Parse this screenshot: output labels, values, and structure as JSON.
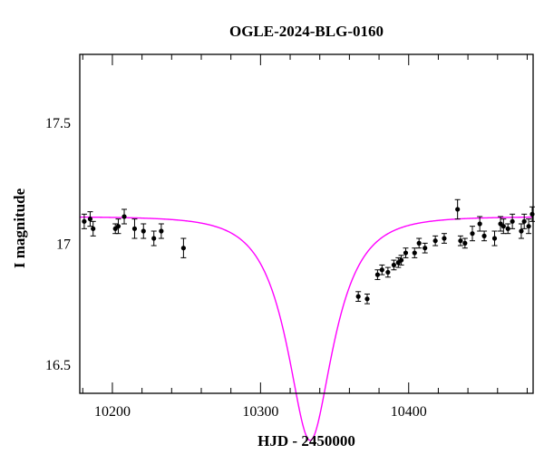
{
  "chart_data": {
    "type": "scatter",
    "title": "OGLE-2024-BLG-0160",
    "xlabel": "HJD - 2450000",
    "ylabel": "I magnitude",
    "xlim": [
      10178,
      10484
    ],
    "ylim": [
      17.78,
      16.38
    ],
    "y_inverted": true,
    "x_ticks": [
      10200,
      10300,
      10400
    ],
    "x_tick_labels": [
      "10200",
      "10300",
      "10400"
    ],
    "y_ticks": [
      16.5,
      17.0,
      17.5
    ],
    "y_tick_labels": [
      "16.5",
      "17",
      "17.5"
    ],
    "x_minor_step": 20,
    "y_minor_step": 0.1,
    "grid": false,
    "colors": {
      "model": "#ff00ff",
      "points": "#000000",
      "frame": "#000000"
    },
    "model": {
      "name": "",
      "t0": 10333.5,
      "tE": 28,
      "u0": 0.46,
      "baseline_mag": 17.11,
      "blend_fraction": 1.0
    },
    "series": [
      {
        "name": "",
        "points": [
          {
            "x": 10181,
            "y": 17.09,
            "err": 0.03
          },
          {
            "x": 10185,
            "y": 17.1,
            "err": 0.03
          },
          {
            "x": 10187,
            "y": 17.06,
            "err": 0.03
          },
          {
            "x": 10202,
            "y": 17.06,
            "err": 0.02
          },
          {
            "x": 10204,
            "y": 17.07,
            "err": 0.03
          },
          {
            "x": 10208,
            "y": 17.11,
            "err": 0.03
          },
          {
            "x": 10215,
            "y": 17.06,
            "err": 0.04
          },
          {
            "x": 10221,
            "y": 17.05,
            "err": 0.03
          },
          {
            "x": 10228,
            "y": 17.02,
            "err": 0.03
          },
          {
            "x": 10233,
            "y": 17.05,
            "err": 0.03
          },
          {
            "x": 10248,
            "y": 16.98,
            "err": 0.04
          },
          {
            "x": 10366,
            "y": 16.78,
            "err": 0.02
          },
          {
            "x": 10372,
            "y": 16.77,
            "err": 0.02
          },
          {
            "x": 10379,
            "y": 16.87,
            "err": 0.02
          },
          {
            "x": 10382,
            "y": 16.89,
            "err": 0.02
          },
          {
            "x": 10386,
            "y": 16.88,
            "err": 0.02
          },
          {
            "x": 10390,
            "y": 16.91,
            "err": 0.02
          },
          {
            "x": 10393,
            "y": 16.92,
            "err": 0.02
          },
          {
            "x": 10395,
            "y": 16.93,
            "err": 0.02
          },
          {
            "x": 10398,
            "y": 16.96,
            "err": 0.02
          },
          {
            "x": 10404,
            "y": 16.96,
            "err": 0.02
          },
          {
            "x": 10407,
            "y": 17.0,
            "err": 0.02
          },
          {
            "x": 10411,
            "y": 16.98,
            "err": 0.02
          },
          {
            "x": 10418,
            "y": 17.01,
            "err": 0.02
          },
          {
            "x": 10424,
            "y": 17.02,
            "err": 0.02
          },
          {
            "x": 10433,
            "y": 17.14,
            "err": 0.04
          },
          {
            "x": 10435,
            "y": 17.01,
            "err": 0.02
          },
          {
            "x": 10438,
            "y": 17.0,
            "err": 0.02
          },
          {
            "x": 10443,
            "y": 17.04,
            "err": 0.03
          },
          {
            "x": 10448,
            "y": 17.08,
            "err": 0.03
          },
          {
            "x": 10451,
            "y": 17.03,
            "err": 0.02
          },
          {
            "x": 10458,
            "y": 17.02,
            "err": 0.03
          },
          {
            "x": 10462,
            "y": 17.08,
            "err": 0.03
          },
          {
            "x": 10464,
            "y": 17.07,
            "err": 0.03
          },
          {
            "x": 10467,
            "y": 17.06,
            "err": 0.02
          },
          {
            "x": 10470,
            "y": 17.09,
            "err": 0.03
          },
          {
            "x": 10476,
            "y": 17.05,
            "err": 0.03
          },
          {
            "x": 10478,
            "y": 17.09,
            "err": 0.03
          },
          {
            "x": 10481,
            "y": 17.07,
            "err": 0.03
          },
          {
            "x": 10485,
            "y": 17.12,
            "err": 0.03
          }
        ]
      }
    ]
  }
}
